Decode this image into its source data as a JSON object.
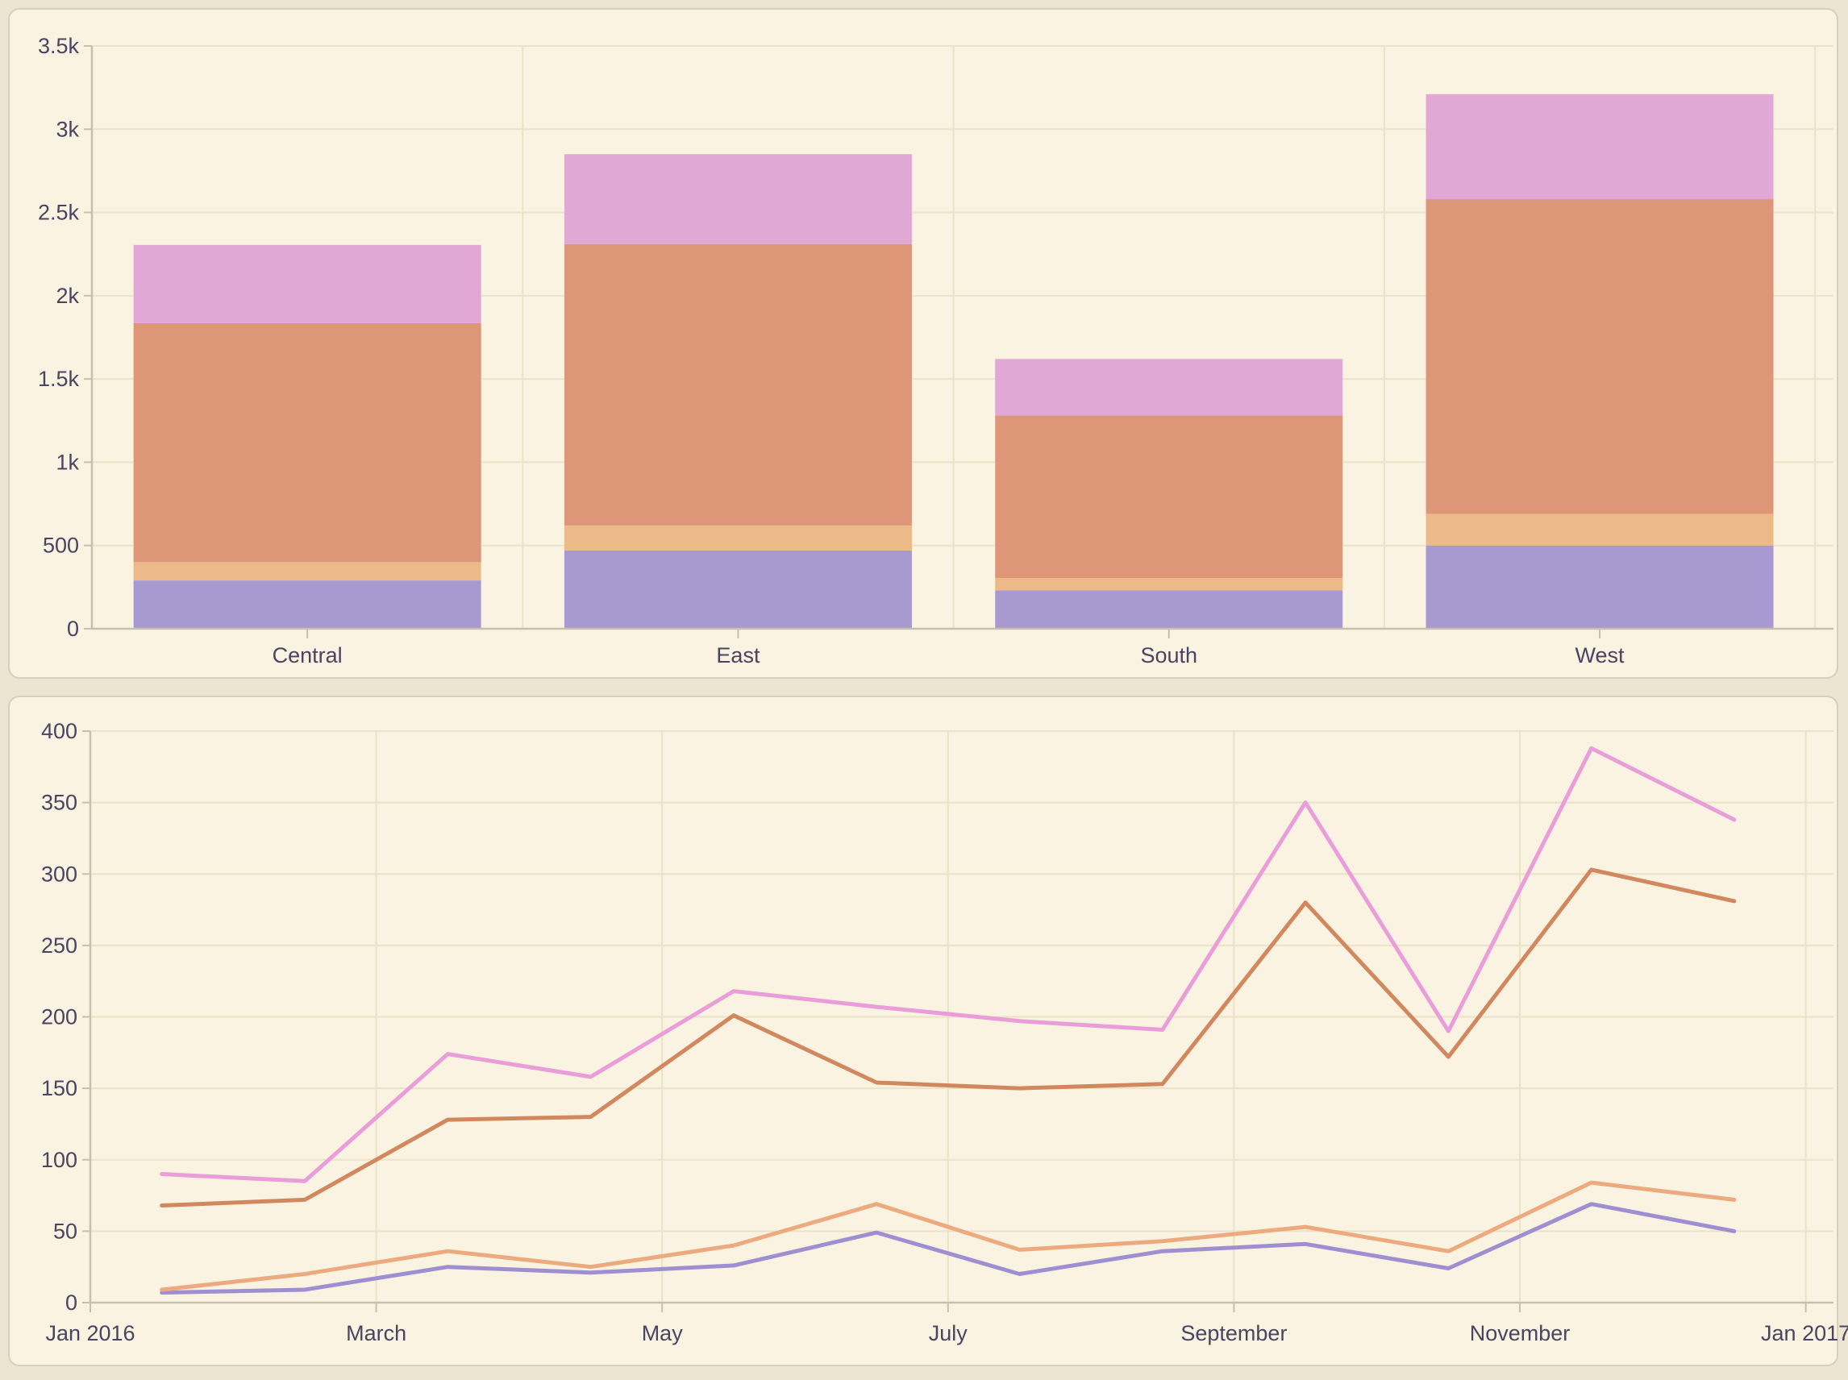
{
  "page": {
    "background": "#ece5d1",
    "panel_background": "#faf3e2",
    "panel_border": "#d8d0ba",
    "grid_color": "#ebe2c8",
    "axis_color": "#c8c0ad",
    "label_color": "#4b4360"
  },
  "chart_data": [
    {
      "type": "bar",
      "stacked": true,
      "title": "",
      "xlabel": "",
      "ylabel": "",
      "legend": "none",
      "grid": true,
      "categories": [
        "Central",
        "East",
        "South",
        "West"
      ],
      "series": [
        {
          "name": "series-purple",
          "color": "#a89ad0",
          "values": [
            290,
            470,
            230,
            500
          ]
        },
        {
          "name": "series-peach",
          "color": "#ecb988",
          "values": [
            110,
            150,
            75,
            190
          ]
        },
        {
          "name": "series-salmon",
          "color": "#de9679",
          "values": [
            1435,
            1690,
            975,
            1890
          ]
        },
        {
          "name": "series-pink",
          "color": "#e1a8d5",
          "values": [
            470,
            540,
            340,
            630
          ]
        }
      ],
      "stack_totals": [
        2305,
        2850,
        1620,
        3210
      ],
      "ylim": [
        0,
        3500
      ],
      "ytick_step": 500,
      "ytick_labels": [
        "0",
        "500",
        "1k",
        "1.5k",
        "2k",
        "2.5k",
        "3k",
        "3.5k"
      ]
    },
    {
      "type": "line",
      "title": "",
      "xlabel": "",
      "ylabel": "",
      "legend": "none",
      "grid": true,
      "x": [
        "Jan 2016",
        "Feb 2016",
        "Mar 2016",
        "Apr 2016",
        "May 2016",
        "Jun 2016",
        "Jul 2016",
        "Aug 2016",
        "Sep 2016",
        "Oct 2016",
        "Nov 2016",
        "Dec 2016"
      ],
      "xtick_labels": [
        "Jan 2016",
        "March",
        "May",
        "July",
        "September",
        "November",
        "Jan 2017"
      ],
      "series": [
        {
          "name": "series-purple",
          "color": "#9e90d0",
          "values": [
            7,
            9,
            25,
            21,
            26,
            49,
            20,
            36,
            41,
            24,
            69,
            50
          ]
        },
        {
          "name": "series-peach",
          "color": "#ecaa7e",
          "values": [
            9,
            20,
            36,
            25,
            40,
            69,
            37,
            43,
            53,
            36,
            84,
            72
          ]
        },
        {
          "name": "series-orange",
          "color": "#d2885e",
          "values": [
            68,
            72,
            128,
            130,
            201,
            154,
            150,
            153,
            280,
            172,
            303,
            281
          ]
        },
        {
          "name": "series-pink",
          "color": "#e99dd9",
          "values": [
            90,
            85,
            174,
            158,
            218,
            207,
            197,
            191,
            350,
            190,
            388,
            338
          ]
        }
      ],
      "ylim": [
        0,
        400
      ],
      "ytick_step": 50,
      "ytick_labels": [
        "0",
        "50",
        "100",
        "150",
        "200",
        "250",
        "300",
        "350",
        "400"
      ]
    }
  ]
}
